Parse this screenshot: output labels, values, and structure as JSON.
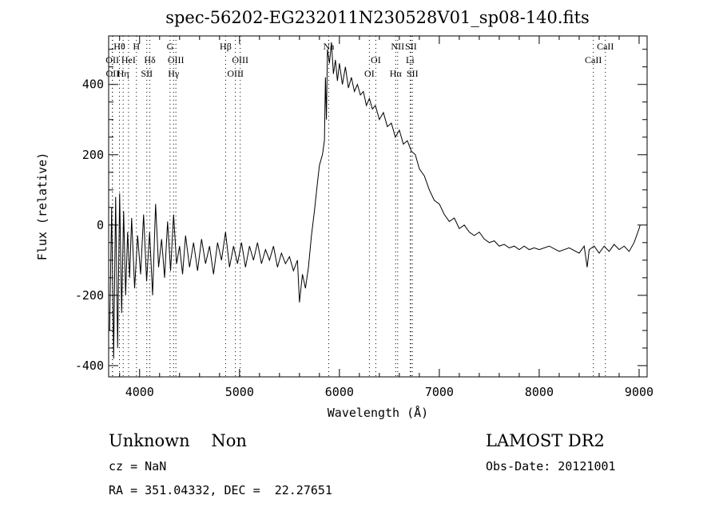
{
  "chart_data": {
    "type": "line",
    "title": "spec-56202-EG232011N230528V01_sp08-140.fits",
    "xlabel": "Wavelength (Å)",
    "ylabel": "Flux (relative)",
    "xlim": [
      3690,
      9080
    ],
    "ylim": [
      -432,
      538
    ],
    "xticks": [
      4000,
      5000,
      6000,
      7000,
      8000,
      9000
    ],
    "yticks": [
      -400,
      -200,
      0,
      200,
      400
    ],
    "grid": false,
    "series": [
      {
        "name": "spectrum",
        "x": [
          3700,
          3720,
          3740,
          3760,
          3780,
          3800,
          3820,
          3840,
          3860,
          3880,
          3900,
          3920,
          3950,
          3980,
          4010,
          4040,
          4070,
          4100,
          4130,
          4160,
          4190,
          4220,
          4250,
          4280,
          4310,
          4340,
          4370,
          4400,
          4430,
          4460,
          4500,
          4540,
          4580,
          4620,
          4660,
          4700,
          4740,
          4780,
          4820,
          4860,
          4900,
          4940,
          4980,
          5020,
          5060,
          5100,
          5140,
          5180,
          5220,
          5260,
          5300,
          5340,
          5380,
          5420,
          5460,
          5500,
          5540,
          5580,
          5600,
          5630,
          5660,
          5690,
          5720,
          5750,
          5780,
          5800,
          5830,
          5850,
          5860,
          5870,
          5880,
          5900,
          5920,
          5940,
          5960,
          5980,
          6000,
          6030,
          6060,
          6090,
          6120,
          6150,
          6180,
          6210,
          6240,
          6270,
          6300,
          6330,
          6360,
          6400,
          6440,
          6480,
          6520,
          6560,
          6600,
          6640,
          6680,
          6720,
          6760,
          6800,
          6850,
          6900,
          6950,
          7000,
          7050,
          7100,
          7150,
          7200,
          7250,
          7300,
          7350,
          7400,
          7450,
          7500,
          7550,
          7600,
          7650,
          7700,
          7750,
          7800,
          7850,
          7900,
          7950,
          8000,
          8100,
          8200,
          8300,
          8400,
          8450,
          8480,
          8500,
          8550,
          8600,
          8650,
          8700,
          8750,
          8800,
          8850,
          8900,
          8950,
          9000,
          9010
        ],
        "y": [
          -300,
          50,
          -380,
          80,
          -350,
          90,
          -250,
          40,
          -200,
          -20,
          -150,
          20,
          -180,
          -30,
          -140,
          30,
          -160,
          -20,
          -200,
          60,
          -120,
          -40,
          -150,
          10,
          -130,
          30,
          -110,
          -60,
          -140,
          -30,
          -120,
          -50,
          -130,
          -40,
          -110,
          -60,
          -140,
          -50,
          -100,
          -20,
          -120,
          -60,
          -110,
          -50,
          -120,
          -60,
          -100,
          -50,
          -110,
          -70,
          -100,
          -60,
          -120,
          -80,
          -110,
          -90,
          -130,
          -100,
          -220,
          -140,
          -180,
          -120,
          -30,
          40,
          120,
          170,
          200,
          240,
          420,
          300,
          500,
          460,
          520,
          430,
          470,
          410,
          460,
          400,
          450,
          390,
          420,
          380,
          400,
          370,
          380,
          340,
          360,
          330,
          340,
          300,
          320,
          280,
          290,
          250,
          270,
          230,
          240,
          210,
          200,
          160,
          140,
          100,
          70,
          60,
          30,
          10,
          20,
          -10,
          0,
          -20,
          -30,
          -20,
          -40,
          -50,
          -45,
          -60,
          -55,
          -65,
          -60,
          -70,
          -60,
          -70,
          -65,
          -70,
          -60,
          -75,
          -65,
          -80,
          -60,
          -120,
          -70,
          -60,
          -80,
          -60,
          -75,
          -55,
          -70,
          -60,
          -75,
          -50,
          -10,
          0
        ]
      }
    ],
    "line_markers": [
      {
        "label": "Hθ",
        "wavelength": 3798,
        "row": 0
      },
      {
        "label": "H",
        "wavelength": 3968,
        "row": 0
      },
      {
        "label": "G",
        "wavelength": 4305,
        "row": 0
      },
      {
        "label": "Hβ",
        "wavelength": 4861,
        "row": 0
      },
      {
        "label": "Na",
        "wavelength": 5893,
        "row": 0
      },
      {
        "label": "NII",
        "wavelength": 6583,
        "row": 0
      },
      {
        "label": "SII",
        "wavelength": 6716,
        "row": 0
      },
      {
        "label": "CaII",
        "wavelength": 8662,
        "row": 0
      },
      {
        "label": "OII",
        "wavelength": 3727,
        "row": 1
      },
      {
        "label": "HeI",
        "wavelength": 3889,
        "row": 1
      },
      {
        "label": "Hδ",
        "wavelength": 4102,
        "row": 1
      },
      {
        "label": "OIII",
        "wavelength": 4363,
        "row": 1
      },
      {
        "label": "OIII",
        "wavelength": 5007,
        "row": 1
      },
      {
        "label": "OI",
        "wavelength": 6364,
        "row": 1
      },
      {
        "label": "Li",
        "wavelength": 6708,
        "row": 1
      },
      {
        "label": "CaII",
        "wavelength": 8542,
        "row": 1
      },
      {
        "label": "OII",
        "wavelength": 3729,
        "row": 2
      },
      {
        "label": "Hη",
        "wavelength": 3835,
        "row": 2
      },
      {
        "label": "SII",
        "wavelength": 4072,
        "row": 2
      },
      {
        "label": "Hγ",
        "wavelength": 4340,
        "row": 2
      },
      {
        "label": "OIII",
        "wavelength": 4959,
        "row": 2
      },
      {
        "label": "OI",
        "wavelength": 6300,
        "row": 2
      },
      {
        "label": "Hα",
        "wavelength": 6563,
        "row": 2
      },
      {
        "label": "SII",
        "wavelength": 6731,
        "row": 2
      }
    ]
  },
  "info": {
    "class": "Unknown    Non",
    "cz": "cz = NaN",
    "coords": "RA = 351.04332, DEC =  22.27651",
    "survey": "LAMOST DR2",
    "obs_date": "Obs-Date: 20121001"
  }
}
